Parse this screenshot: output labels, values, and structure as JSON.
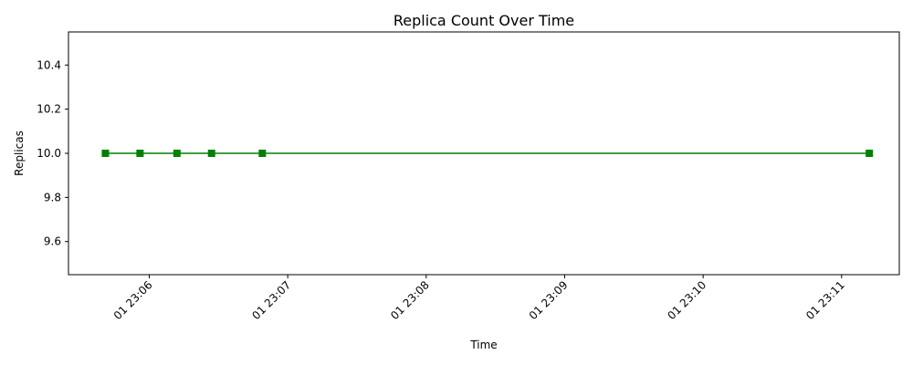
{
  "chart_data": {
    "type": "line",
    "title": "Replica Count Over Time",
    "xlabel": "Time",
    "ylabel": "Replicas",
    "x_ticks": [
      "01 23:06",
      "01 23:07",
      "01 23:08",
      "01 23:09",
      "01 23:10",
      "01 23:11"
    ],
    "y_ticks": [
      "9.6",
      "9.8",
      "10.0",
      "10.2",
      "10.4"
    ],
    "xlim": [
      "23:05:25",
      "23:11:25"
    ],
    "ylim": [
      9.45,
      10.55
    ],
    "grid": false,
    "series": [
      {
        "marker": "square",
        "color": "#008000",
        "points": [
          {
            "x": "23:05:41",
            "y": 10
          },
          {
            "x": "23:05:56",
            "y": 10
          },
          {
            "x": "23:06:12",
            "y": 10
          },
          {
            "x": "23:06:27",
            "y": 10
          },
          {
            "x": "23:06:49",
            "y": 10
          },
          {
            "x": "23:11:12",
            "y": 10
          }
        ]
      }
    ]
  }
}
